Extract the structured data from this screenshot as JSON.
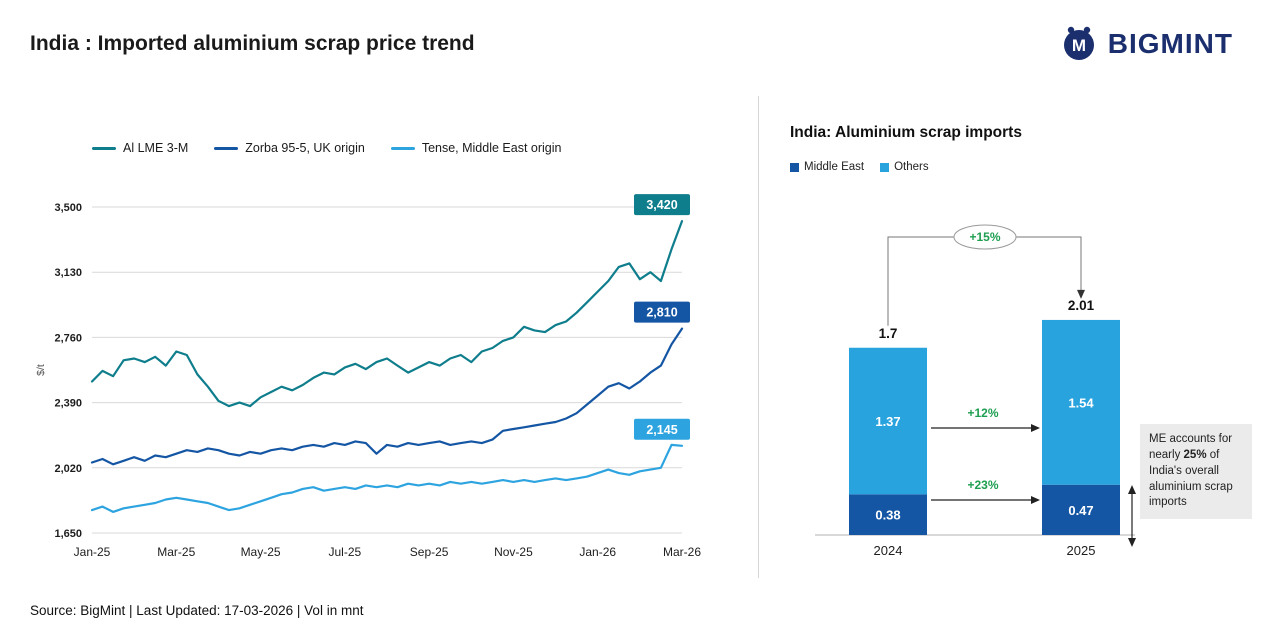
{
  "page": {
    "title": "India : Imported aluminium scrap price trend",
    "brand": "BIGMINT",
    "logo_letter": "M",
    "footer": "Source: BigMint | Last Updated: 17-03-2026 | Vol in mnt"
  },
  "chart_data": [
    {
      "type": "line",
      "ylabel": "$/t",
      "ylim": [
        1650,
        3500
      ],
      "grid": true,
      "legend_position": "top",
      "x_tick_labels": [
        "Jan-25",
        "Mar-25",
        "May-25",
        "Jul-25",
        "Sep-25",
        "Nov-25",
        "Jan-26",
        "Mar-26"
      ],
      "y_ticks": [
        {
          "v": 1650,
          "label": "1,650"
        },
        {
          "v": 2020,
          "label": "2,020"
        },
        {
          "v": 2390,
          "label": "2,390"
        },
        {
          "v": 2760,
          "label": "2,760"
        },
        {
          "v": 3130,
          "label": "3,130"
        },
        {
          "v": 3500,
          "label": "3,500"
        }
      ],
      "series": [
        {
          "name": "Al LME 3-M",
          "color": "#0e7d8c",
          "end_label": "3,420",
          "end_value": 3420,
          "values": [
            2510,
            2570,
            2540,
            2630,
            2640,
            2620,
            2650,
            2600,
            2680,
            2660,
            2550,
            2480,
            2400,
            2370,
            2390,
            2370,
            2420,
            2450,
            2480,
            2460,
            2490,
            2530,
            2560,
            2550,
            2590,
            2610,
            2580,
            2620,
            2640,
            2600,
            2560,
            2590,
            2620,
            2600,
            2640,
            2660,
            2620,
            2680,
            2700,
            2740,
            2760,
            2820,
            2800,
            2790,
            2830,
            2850,
            2900,
            2960,
            3020,
            3080,
            3160,
            3180,
            3090,
            3130,
            3080,
            3260,
            3420
          ]
        },
        {
          "name": "Zorba 95-5, UK origin",
          "color": "#1456a4",
          "end_label": "2,810",
          "end_value": 2810,
          "values": [
            2050,
            2070,
            2040,
            2060,
            2080,
            2060,
            2090,
            2080,
            2100,
            2120,
            2110,
            2130,
            2120,
            2100,
            2090,
            2110,
            2100,
            2120,
            2130,
            2120,
            2140,
            2150,
            2140,
            2160,
            2150,
            2170,
            2160,
            2100,
            2150,
            2140,
            2160,
            2150,
            2160,
            2170,
            2150,
            2160,
            2170,
            2160,
            2180,
            2230,
            2240,
            2250,
            2260,
            2270,
            2280,
            2300,
            2330,
            2380,
            2430,
            2480,
            2500,
            2470,
            2510,
            2560,
            2600,
            2720,
            2810
          ]
        },
        {
          "name": "Tense, Middle East origin",
          "color": "#2da4e0",
          "end_label": "2,145",
          "end_value": 2145,
          "values": [
            1780,
            1800,
            1770,
            1790,
            1800,
            1810,
            1820,
            1840,
            1850,
            1840,
            1830,
            1820,
            1800,
            1780,
            1790,
            1810,
            1830,
            1850,
            1870,
            1880,
            1900,
            1910,
            1890,
            1900,
            1910,
            1900,
            1920,
            1910,
            1920,
            1910,
            1930,
            1920,
            1930,
            1920,
            1940,
            1930,
            1940,
            1930,
            1940,
            1950,
            1940,
            1950,
            1940,
            1950,
            1960,
            1950,
            1960,
            1970,
            1990,
            2010,
            1990,
            1980,
            2000,
            2010,
            2020,
            2150,
            2145
          ]
        }
      ]
    },
    {
      "type": "bar",
      "stacked": true,
      "title": "India: Aluminium scrap imports",
      "categories": [
        "2024",
        "2025"
      ],
      "series": [
        {
          "name": "Middle East",
          "color": "#1456a4",
          "values": [
            0.38,
            0.47
          ],
          "labels": [
            "0.38",
            "0.47"
          ]
        },
        {
          "name": "Others",
          "color": "#29a3de",
          "values": [
            1.37,
            1.54
          ],
          "labels": [
            "1.37",
            "1.54"
          ]
        }
      ],
      "totals": [
        "1.7",
        "2.01"
      ],
      "annotations": {
        "total_growth": "+15%",
        "others_growth": "+12%",
        "me_growth": "+23%"
      },
      "note": {
        "pre": "ME accounts for nearly ",
        "bold": "25%",
        "post": " of India's overall aluminium scrap imports"
      }
    }
  ]
}
